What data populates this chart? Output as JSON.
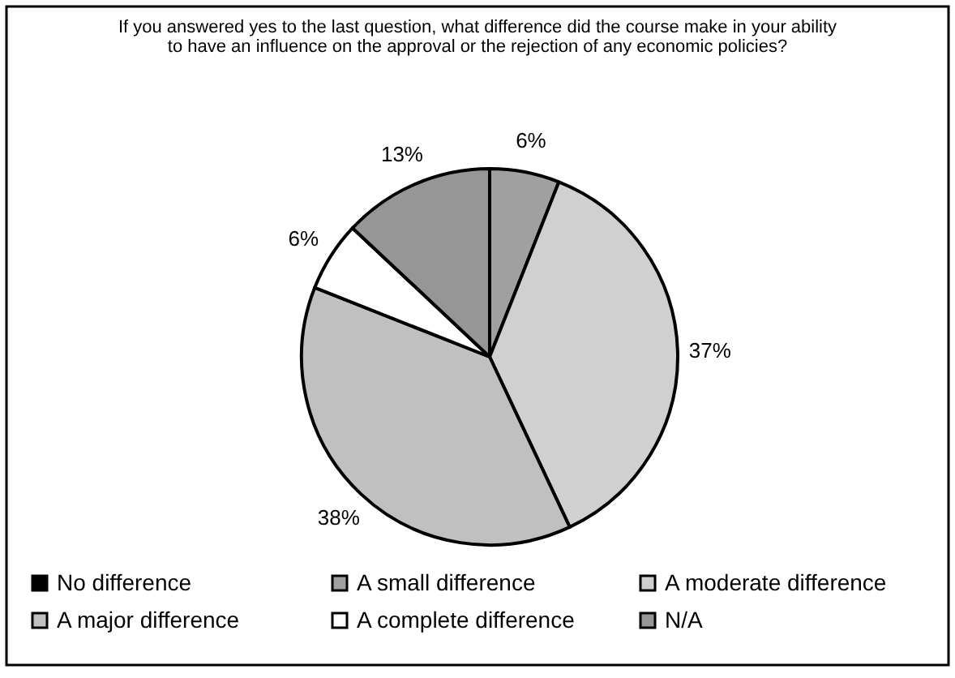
{
  "chart_data": {
    "type": "pie",
    "title": "If you answered yes to the last question, what difference did the course make in your ability to have an influence on the approval or the rejection of any economic policies?",
    "categories": [
      "No difference",
      "A small difference",
      "A moderate difference",
      "A major difference",
      "A complete difference",
      "N/A"
    ],
    "values": [
      0,
      6,
      37,
      38,
      6,
      13
    ],
    "value_labels": [
      null,
      "6%",
      "37%",
      "38%",
      "6%",
      "13%"
    ],
    "colors": [
      "#000000",
      "#a0a0a0",
      "#d0d0d0",
      "#c0c0c0",
      "#ffffff",
      "#969696"
    ],
    "legend": "bottom"
  }
}
